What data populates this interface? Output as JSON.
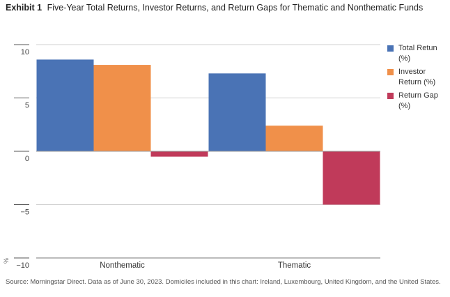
{
  "header": {
    "exhibit_label": "Exhibit 1",
    "title": "Five-Year Total Returns, Investor Returns, and Return Gaps for Thematic and Nonthematic Funds"
  },
  "colors": {
    "total": "#4a73b5",
    "investor": "#f0904a",
    "gap": "#c03a5a",
    "grid": "#d0d0d0"
  },
  "chart_data": {
    "type": "bar",
    "categories": [
      "Nonthematic",
      "Thematic"
    ],
    "series": [
      {
        "name": "Total Retun (%)",
        "values": [
          8.6,
          7.3
        ]
      },
      {
        "name": "Investor Return (%)",
        "values": [
          8.1,
          2.4
        ]
      },
      {
        "name": "Return Gap (%)",
        "values": [
          -0.5,
          -5.0
        ]
      }
    ],
    "ylim": [
      -10,
      10
    ],
    "yticks": [
      "10",
      "5",
      "0",
      "−5",
      "−10"
    ],
    "ylabel": "%",
    "grid": true,
    "legend": "right"
  },
  "legend": {
    "items": [
      {
        "line1": "Total Retun",
        "line2": "(%)"
      },
      {
        "line1": "Investor",
        "line2": "Return (%)"
      },
      {
        "line1": "Return Gap",
        "line2": "(%)"
      }
    ]
  },
  "footer": {
    "source": "Source: Morningstar Direct. Data as of June 30, 2023. Domiciles included in this chart: Ireland, Luxembourg, United Kingdom, and the United States."
  }
}
